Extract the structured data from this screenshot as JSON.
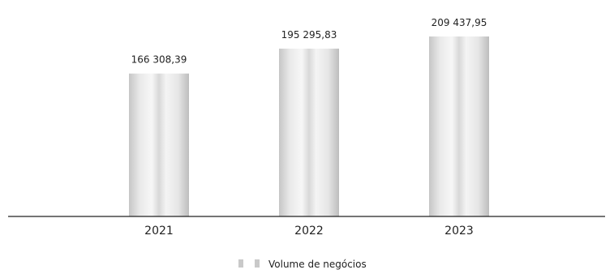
{
  "chart_data": {
    "type": "bar",
    "categories": [
      "2021",
      "2022",
      "2023"
    ],
    "series": [
      {
        "name": "Volume de negócios",
        "values": [
          166308.39,
          195295.83,
          209437.95
        ]
      }
    ],
    "data_labels": [
      "166 308,39",
      "195 295,83",
      "209 437,95"
    ],
    "title": "",
    "xlabel": "",
    "ylabel": "",
    "ylim": [
      0,
      209437.95
    ],
    "grid": false,
    "legend_position": "bottom",
    "colors": {
      "bar_edge": "#c4c4c4",
      "bar_mid": "#f6f6f6",
      "bar_dark": "#b8b8b8",
      "axis": "#222222",
      "text": "#222222"
    }
  }
}
